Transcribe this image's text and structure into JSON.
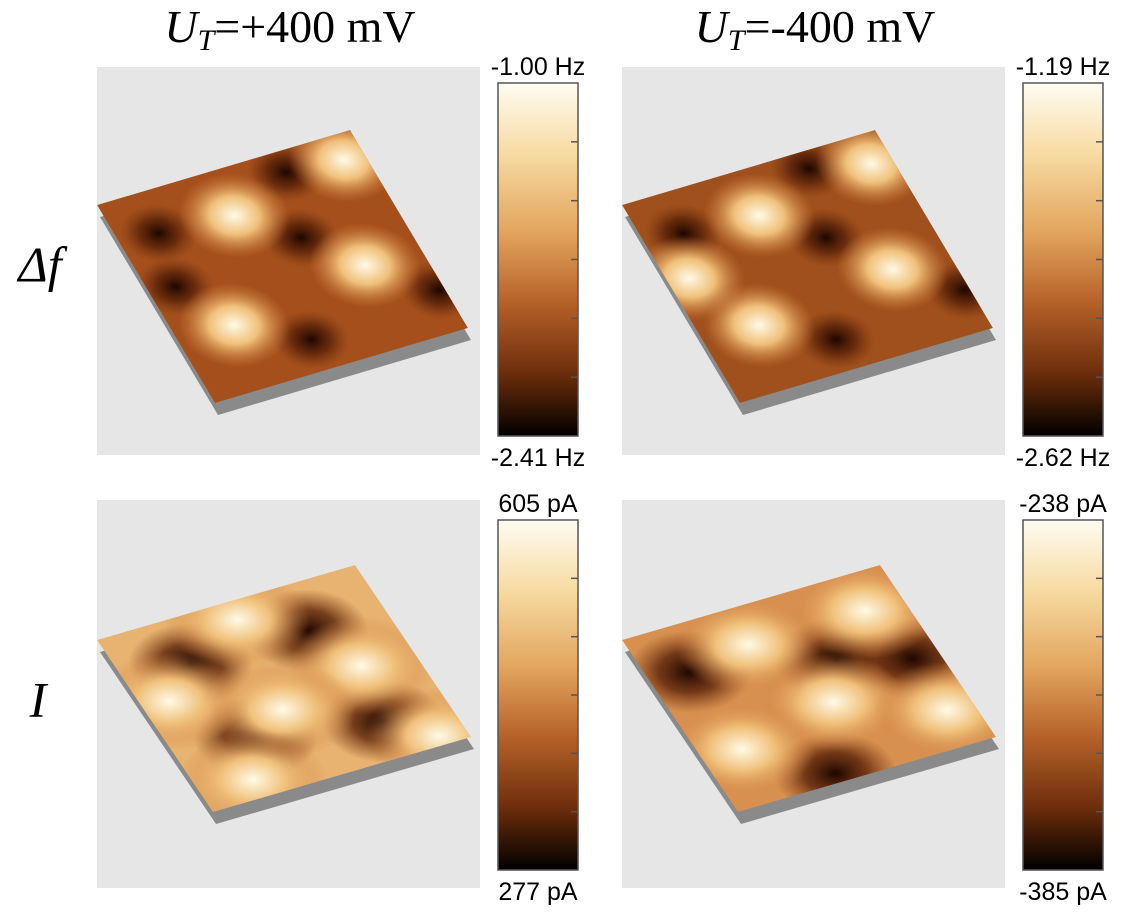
{
  "columns": [
    {
      "title": {
        "symbol": "U",
        "subscript": "T",
        "value": "=+400 mV"
      }
    },
    {
      "title": {
        "symbol": "U",
        "subscript": "T",
        "value": "=-400 mV"
      }
    }
  ],
  "rows": [
    {
      "label": "Δf",
      "panels": [
        {
          "colorbar": {
            "max": "-1.00 Hz",
            "min": "-2.41 Hz"
          }
        },
        {
          "colorbar": {
            "max": "-1.19 Hz",
            "min": "-2.62 Hz"
          }
        }
      ]
    },
    {
      "label": "I",
      "panels": [
        {
          "colorbar": {
            "max": "605 pA",
            "min": "277 pA"
          }
        },
        {
          "colorbar": {
            "max": "-238 pA",
            "min": "-385 pA"
          }
        }
      ]
    }
  ]
}
